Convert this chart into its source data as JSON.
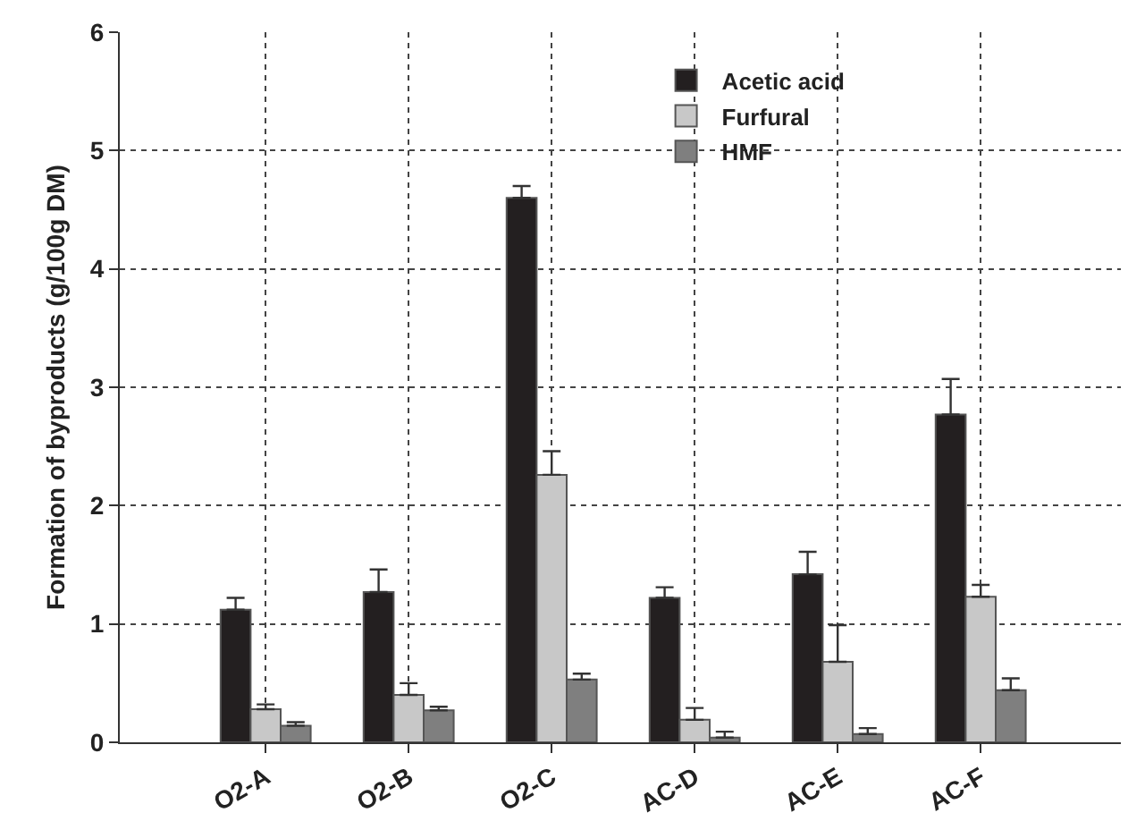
{
  "chart_data": {
    "type": "bar",
    "ylabel": "Formation of byproducts (g/100g DM)",
    "categories": [
      "O2-A",
      "O2-B",
      "O2-C",
      "AC-D",
      "AC-E",
      "AC-F"
    ],
    "series": [
      {
        "name": "Acetic acid",
        "color": "#231f20",
        "values": [
          1.12,
          1.27,
          4.6,
          1.22,
          1.42,
          2.77
        ],
        "errors": [
          [
            1.12,
            1.22
          ],
          [
            1.27,
            1.46
          ],
          [
            4.6,
            4.7
          ],
          [
            1.22,
            1.31
          ],
          [
            1.42,
            1.61
          ],
          [
            2.77,
            3.07
          ]
        ]
      },
      {
        "name": "Furfural",
        "color": "#c8c8c8",
        "values": [
          0.28,
          0.4,
          2.26,
          0.19,
          0.68,
          1.23
        ],
        "errors": [
          [
            0.28,
            0.32
          ],
          [
            0.4,
            0.5
          ],
          [
            2.26,
            2.46
          ],
          [
            0.19,
            0.29
          ],
          [
            0.68,
            0.99
          ],
          [
            1.23,
            1.33
          ]
        ]
      },
      {
        "name": "HMF",
        "color": "#7f7f7f",
        "values": [
          0.14,
          0.27,
          0.53,
          0.04,
          0.07,
          0.44
        ],
        "errors": [
          [
            0.14,
            0.17
          ],
          [
            0.27,
            0.3
          ],
          [
            0.53,
            0.58
          ],
          [
            0.04,
            0.09
          ],
          [
            0.07,
            0.12
          ],
          [
            0.44,
            0.54
          ]
        ]
      }
    ],
    "ylim": [
      0,
      6
    ],
    "yticks": [
      0,
      1,
      2,
      3,
      4,
      5,
      6
    ],
    "grid": true,
    "legend": "top right"
  }
}
